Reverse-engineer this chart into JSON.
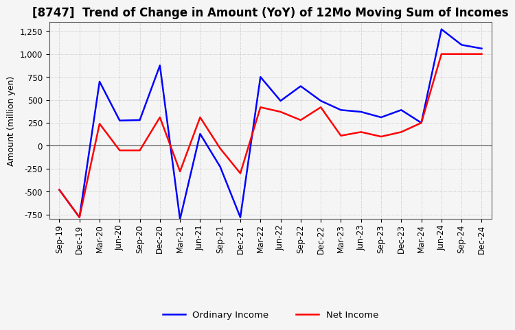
{
  "title": "[8747]  Trend of Change in Amount (YoY) of 12Mo Moving Sum of Incomes",
  "ylabel": "Amount (million yen)",
  "ylim": [
    -800,
    1350
  ],
  "yticks": [
    -750,
    -500,
    -250,
    0,
    250,
    500,
    750,
    1000,
    1250
  ],
  "x_labels": [
    "Sep-19",
    "Dec-19",
    "Mar-20",
    "Jun-20",
    "Sep-20",
    "Dec-20",
    "Mar-21",
    "Jun-21",
    "Sep-21",
    "Dec-21",
    "Mar-22",
    "Jun-22",
    "Sep-22",
    "Dec-22",
    "Mar-23",
    "Jun-23",
    "Sep-23",
    "Dec-23",
    "Mar-24",
    "Jun-24",
    "Sep-24",
    "Dec-24"
  ],
  "ordinary_income": [
    -480,
    -780,
    700,
    275,
    280,
    875,
    -800,
    130,
    -230,
    -780,
    750,
    490,
    650,
    490,
    390,
    370,
    310,
    390,
    250,
    1270,
    1100,
    1060
  ],
  "net_income": [
    -480,
    -780,
    240,
    -50,
    -50,
    310,
    -280,
    310,
    -30,
    -300,
    420,
    370,
    280,
    420,
    110,
    150,
    100,
    150,
    250,
    1000,
    1000,
    1000
  ],
  "ordinary_color": "#0000ff",
  "net_color": "#ff0000",
  "grid_color": "#aaaaaa",
  "bg_color": "#f5f5f5",
  "title_fontsize": 12,
  "label_fontsize": 9,
  "tick_fontsize": 8.5
}
